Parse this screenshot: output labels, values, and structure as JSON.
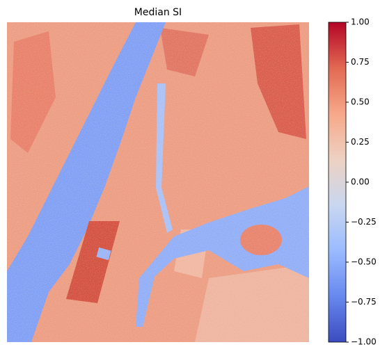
{
  "chart_data": {
    "type": "heatmap",
    "title": "Median SI",
    "colormap": "coolwarm",
    "clim": [
      -1,
      1
    ],
    "colorbar_ticks": [
      {
        "value": -1,
        "label": "−1.00"
      },
      {
        "value": -0.75,
        "label": "−0.75"
      },
      {
        "value": -0.5,
        "label": "−0.50"
      },
      {
        "value": -0.25,
        "label": "−0.25"
      },
      {
        "value": 0,
        "label": "0.00"
      },
      {
        "value": 0.25,
        "label": "0.25"
      },
      {
        "value": 0.5,
        "label": "0.50"
      },
      {
        "value": 0.75,
        "label": "0.75"
      },
      {
        "value": 1,
        "label": "1.00"
      }
    ]
  }
}
